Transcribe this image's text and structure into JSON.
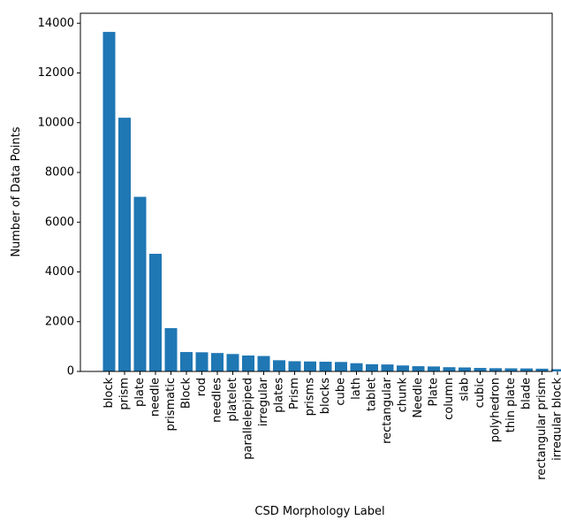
{
  "chart_data": {
    "type": "bar",
    "title": "",
    "xlabel": "CSD Morphology Label",
    "ylabel": "Number of Data Points",
    "ylim": [
      0,
      14400
    ],
    "yticks": [
      0,
      2000,
      4000,
      6000,
      8000,
      10000,
      12000,
      14000
    ],
    "grid": false,
    "bar_color": "#1f77b4",
    "categories": [
      "block",
      "prism",
      "plate",
      "needle",
      "prismatic",
      "Block",
      "rod",
      "needles",
      "platelet",
      "parallelepiped",
      "irregular",
      "plates",
      "Prism",
      "prisms",
      "blocks",
      "cube",
      "lath",
      "tablet",
      "rectangular",
      "chunk",
      "Needle",
      "Plate",
      "column",
      "slab",
      "cubic",
      "polyhedron",
      "thin plate",
      "blade",
      "rectangular prism",
      "irregular block"
    ],
    "values": [
      13650,
      10200,
      7020,
      4730,
      1740,
      780,
      770,
      740,
      700,
      640,
      620,
      450,
      410,
      400,
      390,
      380,
      330,
      290,
      280,
      240,
      210,
      200,
      170,
      160,
      140,
      130,
      125,
      120,
      110,
      90
    ]
  }
}
